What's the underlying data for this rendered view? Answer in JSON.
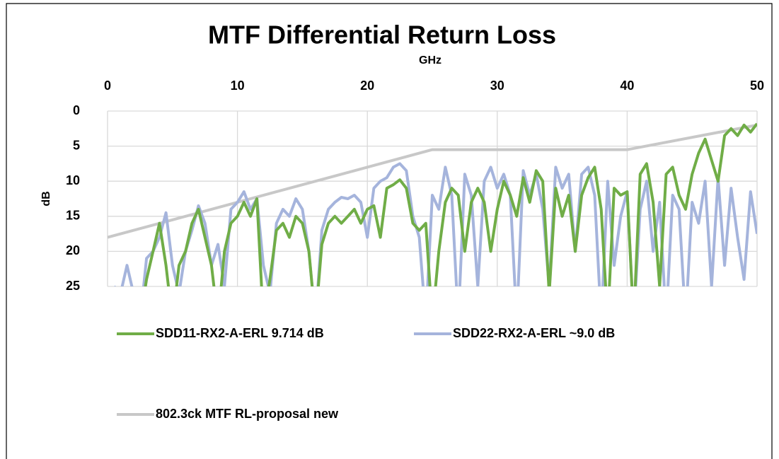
{
  "chart_data": {
    "type": "line",
    "title": "MTF Differential Return Loss",
    "x_label": "GHz",
    "y_label": "dB",
    "x": [
      0,
      0.5,
      1,
      1.5,
      2,
      2.5,
      3,
      3.5,
      4,
      4.5,
      5,
      5.5,
      6,
      6.5,
      7,
      7.5,
      8,
      8.5,
      9,
      9.5,
      10,
      10.5,
      11,
      11.5,
      12,
      12.5,
      13,
      13.5,
      14,
      14.5,
      15,
      15.5,
      16,
      16.5,
      17,
      17.5,
      18,
      18.5,
      19,
      19.5,
      20,
      20.5,
      21,
      21.5,
      22,
      22.5,
      23,
      23.5,
      24,
      24.5,
      25,
      25.5,
      26,
      26.5,
      27,
      27.5,
      28,
      28.5,
      29,
      29.5,
      30,
      30.5,
      31,
      31.5,
      32,
      32.5,
      33,
      33.5,
      34,
      34.5,
      35,
      35.5,
      36,
      36.5,
      37,
      37.5,
      38,
      38.5,
      39,
      39.5,
      40,
      40.5,
      41,
      41.5,
      42,
      42.5,
      43,
      43.5,
      44,
      44.5,
      45,
      45.5,
      46,
      46.5,
      47,
      47.5,
      48,
      48.5,
      49,
      49.5,
      50
    ],
    "series": [
      {
        "name": "SDD11-RX2-A-ERL 9.714 dB",
        "color": "#70ad47",
        "values": [
          null,
          null,
          null,
          null,
          null,
          30,
          24,
          20,
          16,
          22,
          30,
          22,
          20,
          16,
          14,
          18,
          22,
          30,
          20,
          16,
          15,
          13,
          15,
          12.5,
          30,
          24,
          17,
          16,
          18,
          15,
          16,
          20,
          30,
          19,
          16,
          15,
          16,
          15,
          14,
          16,
          14,
          13.5,
          18,
          11,
          10.5,
          9.8,
          11,
          16,
          17,
          16,
          30,
          20,
          13,
          11,
          12,
          20,
          13,
          11,
          13,
          20,
          14,
          10,
          12,
          15,
          9.5,
          13,
          8.5,
          10,
          26,
          11,
          15,
          12,
          20,
          12,
          9.5,
          8,
          14,
          30,
          11,
          12,
          11.5,
          30,
          9,
          7.5,
          13,
          25,
          9,
          8,
          12,
          14,
          9,
          6,
          4,
          7,
          10,
          3.5,
          2.5,
          3.5,
          2,
          3,
          1.8
        ]
      },
      {
        "name": "SDD22-RX2-A-ERL ~9.0 dB",
        "color": "#a5b4dc",
        "values": [
          null,
          25,
          26,
          22,
          26,
          30,
          21,
          20,
          18,
          14.5,
          22,
          26,
          20,
          17,
          13.5,
          16,
          22,
          19,
          25,
          14,
          13,
          11.5,
          14,
          12.5,
          22,
          26,
          16,
          14,
          15,
          12.5,
          14,
          20,
          30,
          17,
          14,
          13,
          12.3,
          12.5,
          12,
          13,
          18,
          11,
          10,
          9.5,
          8,
          7.5,
          8.5,
          15,
          18,
          30,
          12,
          14,
          8,
          12,
          30,
          9,
          12,
          25,
          10,
          8,
          11,
          9,
          12,
          30,
          8.5,
          12,
          9,
          14,
          25,
          8,
          11,
          9,
          20,
          9,
          8,
          12,
          30,
          10,
          22,
          15,
          11.5,
          30,
          14,
          10,
          20,
          13,
          30,
          12,
          14,
          30,
          13,
          16,
          10,
          25,
          9.5,
          22,
          11,
          18,
          24,
          11.5,
          17.5
        ]
      },
      {
        "name": "802.3ck MTF RL-proposal new",
        "color": "#c8c8c8",
        "x": [
          0,
          25,
          40,
          50
        ],
        "values": [
          18,
          5.5,
          5.5,
          2
        ]
      }
    ],
    "xlim": [
      0,
      50
    ],
    "xticks": [
      0,
      10,
      20,
      30,
      40,
      50
    ],
    "ylim": [
      0,
      25
    ],
    "yticks": [
      0,
      5,
      10,
      15,
      20,
      25
    ],
    "y_reversed": true,
    "x_axis_top": true,
    "grid": true,
    "legend": "bottom"
  }
}
